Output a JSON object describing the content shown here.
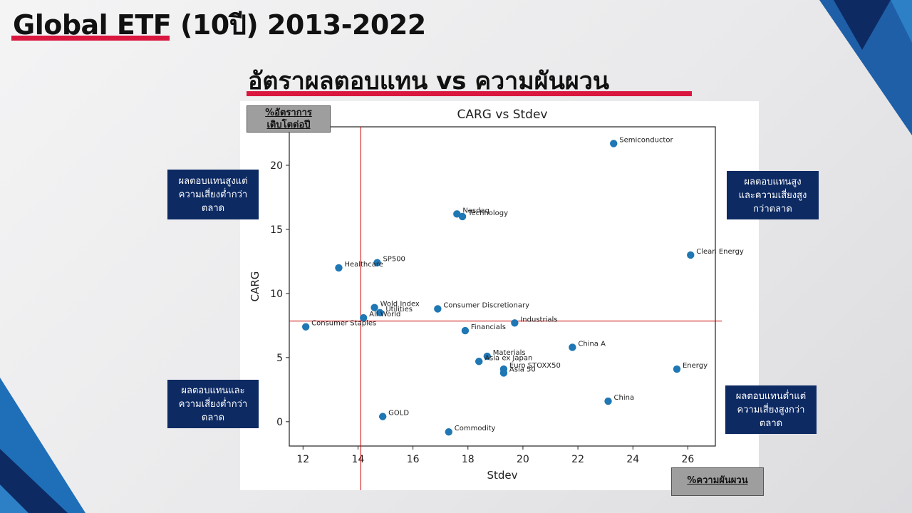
{
  "slide": {
    "title": "Global ETF (10ปี) 2013-2022",
    "subtitle": "อัตราผลตอบแทน vs ความผันผวน"
  },
  "tags": {
    "y_axis_tag": "%อัตราการ\nเติบโตต่อปี",
    "x_axis_tag": "%ความผันผวน"
  },
  "quadrants": {
    "top_left": "ผลตอบแทนสูงแต่\nความเสี่ยงต่ำกว่า\nตลาด",
    "top_right": "ผลตอบแทนสูง\nและความเสี่ยงสูง\nกว่าตลาด",
    "bottom_left": "ผลตอบแทนและ\nความเสี่ยงต่ำกว่า\nตลาด",
    "bottom_right": "ผลตอบแทนต่ำแต่\nความเสี่ยงสูงกว่า\nตลาด"
  },
  "colors": {
    "accent_red": "#d9173f",
    "navy": "#0d2a63",
    "point": "#1f77b4",
    "reference_line": "#cc0000"
  },
  "chart_data": {
    "type": "scatter",
    "title": "CARG vs Stdev",
    "xlabel": "Stdev",
    "ylabel": "CARG",
    "xlim": [
      11.5,
      27.0
    ],
    "ylim": [
      -1.9,
      23.0
    ],
    "xticks": [
      12,
      14,
      16,
      18,
      20,
      22,
      24,
      26
    ],
    "yticks": [
      0,
      5,
      10,
      15,
      20
    ],
    "grid": false,
    "reference_lines": {
      "x": 14.1,
      "y": 7.85
    },
    "points": [
      {
        "label": "Semiconductor",
        "x": 23.3,
        "y": 21.7
      },
      {
        "label": "Nasdaq",
        "x": 17.6,
        "y": 16.2
      },
      {
        "label": "Technology",
        "x": 17.8,
        "y": 16.0
      },
      {
        "label": "Clean Energy",
        "x": 26.1,
        "y": 13.0
      },
      {
        "label": "SP500",
        "x": 14.7,
        "y": 12.4
      },
      {
        "label": "Healthcare",
        "x": 13.3,
        "y": 12.0
      },
      {
        "label": "Wold Index",
        "x": 14.6,
        "y": 8.9
      },
      {
        "label": "Utilities",
        "x": 14.8,
        "y": 8.5
      },
      {
        "label": "All World",
        "x": 14.2,
        "y": 8.1
      },
      {
        "label": "Consumer Discretionary",
        "x": 16.9,
        "y": 8.8
      },
      {
        "label": "Consumer Staples",
        "x": 12.1,
        "y": 7.4
      },
      {
        "label": "Industrials",
        "x": 19.7,
        "y": 7.7
      },
      {
        "label": "Financials",
        "x": 17.9,
        "y": 7.1
      },
      {
        "label": "China A",
        "x": 21.8,
        "y": 5.8
      },
      {
        "label": "Materials",
        "x": 18.7,
        "y": 5.1
      },
      {
        "label": "Asia ex Japan",
        "x": 18.4,
        "y": 4.7
      },
      {
        "label": "Euro STOXX50",
        "x": 19.3,
        "y": 4.1
      },
      {
        "label": "Asia 50",
        "x": 19.3,
        "y": 3.8
      },
      {
        "label": "Energy",
        "x": 25.6,
        "y": 4.1
      },
      {
        "label": "China",
        "x": 23.1,
        "y": 1.6
      },
      {
        "label": "GOLD",
        "x": 14.9,
        "y": 0.4
      },
      {
        "label": "Commodity",
        "x": 17.3,
        "y": -0.8
      }
    ]
  }
}
